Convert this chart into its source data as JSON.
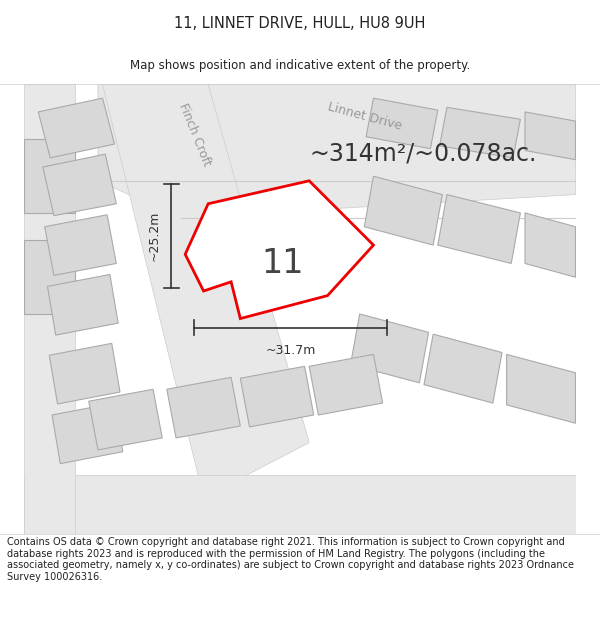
{
  "title": "11, LINNET DRIVE, HULL, HU8 9UH",
  "subtitle": "Map shows position and indicative extent of the property.",
  "footer": "Contains OS data © Crown copyright and database right 2021. This information is subject to Crown copyright and database rights 2023 and is reproduced with the permission of HM Land Registry. The polygons (including the associated geometry, namely x, y co-ordinates) are subject to Crown copyright and database rights 2023 Ordnance Survey 100026316.",
  "area_text": "~314m²/~0.078ac.",
  "plot_number": "11",
  "dim_width": "~31.7m",
  "dim_height": "~25.2m",
  "bg_color": "#ffffff",
  "map_bg": "#ffffff",
  "road_fill": "#e8e8e8",
  "road_edge": "#cccccc",
  "building_fill": "#d8d8d8",
  "building_edge": "#aaaaaa",
  "plot_fill": "#ffffff",
  "highlight_color": "#ee0000",
  "dim_color": "#333333",
  "road_label_color": "#999999",
  "text_color": "#222222",
  "title_fontsize": 10.5,
  "subtitle_fontsize": 8.5,
  "footer_fontsize": 7,
  "area_fontsize": 17,
  "plot_num_fontsize": 24,
  "dim_fontsize": 9,
  "road_label_fontsize": 9
}
